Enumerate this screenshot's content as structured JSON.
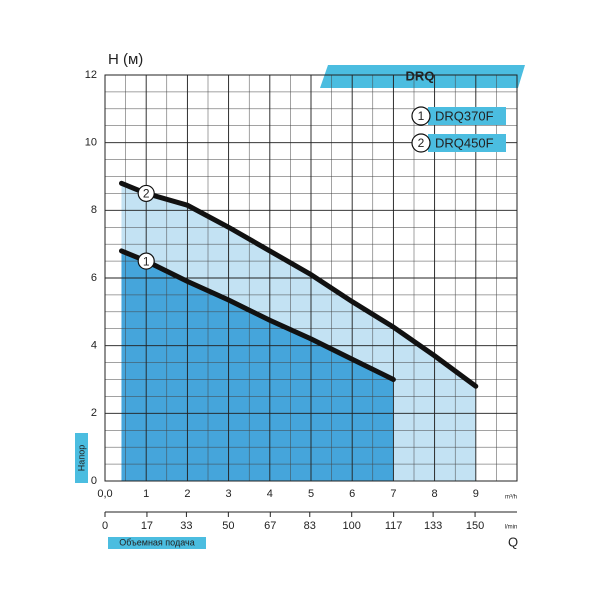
{
  "chart_data": {
    "type": "line",
    "title": "DRQ",
    "y_label": "H (м)",
    "y_axis_title": "Напор",
    "x_label": "Объемная подача",
    "x_symbol": "Q",
    "x_unit": "m³/h",
    "x2_unit": "l/min",
    "xlim": [
      0,
      10
    ],
    "xticks": [
      {
        "value": 0,
        "label": "0,0"
      },
      1,
      2,
      3,
      4,
      5,
      6,
      7,
      8,
      9
    ],
    "x2lim": [
      0,
      167
    ],
    "x2ticks": [
      0,
      17,
      33,
      50,
      67,
      83,
      100,
      117,
      133,
      150
    ],
    "ylim": [
      0,
      12
    ],
    "yticks": [
      0,
      2,
      4,
      6,
      8,
      10,
      12
    ],
    "grid": true,
    "x": [
      0.4,
      1,
      2,
      3,
      4,
      5,
      6,
      7,
      8,
      9
    ],
    "series": [
      {
        "name": "DRQ370F",
        "label": "1",
        "color": "#111111",
        "fill": "#2f9ad6",
        "values": [
          6.8,
          6.5,
          5.9,
          5.35,
          4.75,
          4.2,
          3.6,
          3.0,
          null,
          null
        ]
      },
      {
        "name": "DRQ450F",
        "label": "2",
        "color": "#111111",
        "fill": "#b9ddf1",
        "values": [
          8.8,
          8.5,
          8.15,
          7.5,
          6.8,
          6.1,
          5.3,
          4.55,
          3.7,
          2.8
        ]
      }
    ]
  }
}
